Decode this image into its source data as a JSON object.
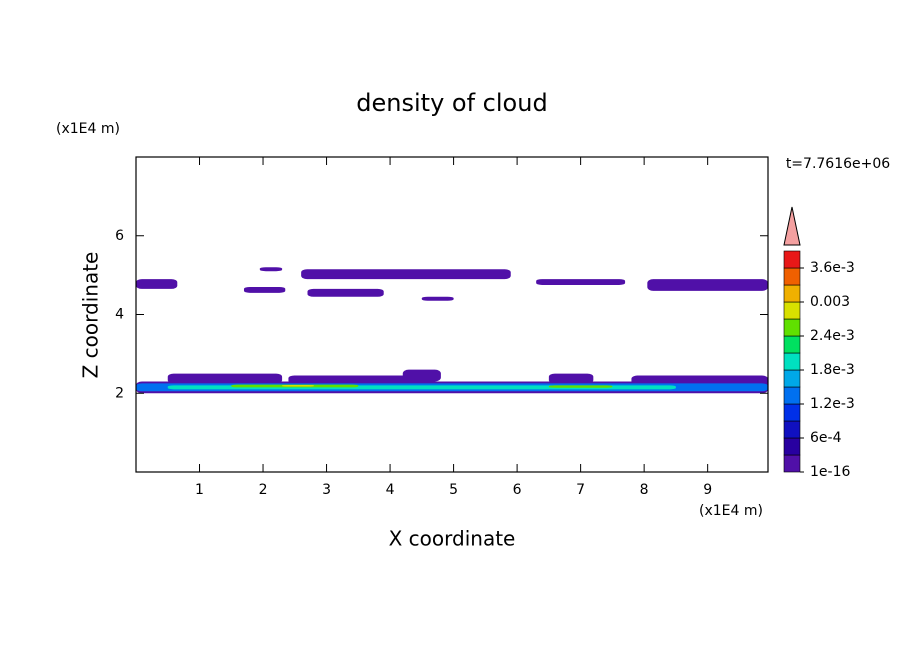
{
  "chart_data": {
    "type": "contour",
    "title": "density of cloud",
    "x_label": "X coordinate",
    "y_label": "Z coordinate",
    "x_unit": "(x1E4 m)",
    "y_unit": "(x1E4 m)",
    "time_label": "t=7.7616e+06",
    "xlim": [
      0,
      9.95
    ],
    "ylim": [
      0,
      8
    ],
    "xticks": [
      1,
      2,
      3,
      4,
      5,
      6,
      7,
      8,
      9
    ],
    "yticks": [
      2,
      4,
      6
    ],
    "colorbar": {
      "levels": [
        1e-16,
        0.0003,
        0.0006,
        0.0009,
        0.0012,
        0.0015,
        0.0018,
        0.0021,
        0.0024,
        0.0027,
        0.003,
        0.0033,
        0.0036,
        0.0039
      ],
      "colors": [
        "#5010a8",
        "#2800a0",
        "#1010c0",
        "#0030e8",
        "#0070f0",
        "#00a8e8",
        "#00e0c0",
        "#00e060",
        "#60e000",
        "#d8e000",
        "#f0b000",
        "#f06000",
        "#e81818"
      ],
      "ticks": [
        1e-16,
        {
          "value": 0.0006,
          "label": "6e-4"
        },
        {
          "value": 0.0012,
          "label": "1.2e-3"
        },
        {
          "value": 0.0018,
          "label": "1.8e-3"
        },
        {
          "value": 0.0024,
          "label": "2.4e-3"
        },
        0.003,
        {
          "value": 0.0036,
          "label": "3.6e-3"
        }
      ]
    },
    "regions": [
      {
        "x": [
          0.0,
          0.65
        ],
        "z": [
          4.65,
          4.9
        ],
        "value": 0.0001
      },
      {
        "x": [
          1.95,
          2.3
        ],
        "z": [
          5.1,
          5.2
        ],
        "value": 0.0001
      },
      {
        "x": [
          1.7,
          2.35
        ],
        "z": [
          4.55,
          4.7
        ],
        "value": 0.0001
      },
      {
        "x": [
          2.6,
          5.9
        ],
        "z": [
          4.9,
          5.15
        ],
        "value": 0.0001
      },
      {
        "x": [
          2.7,
          3.9
        ],
        "z": [
          4.45,
          4.65
        ],
        "value": 0.0001
      },
      {
        "x": [
          4.5,
          5.0
        ],
        "z": [
          4.35,
          4.45
        ],
        "value": 0.0001
      },
      {
        "x": [
          6.3,
          7.7
        ],
        "z": [
          4.75,
          4.9
        ],
        "value": 0.0001
      },
      {
        "x": [
          8.05,
          9.95
        ],
        "z": [
          4.6,
          4.9
        ],
        "value": 0.0001
      },
      {
        "x": [
          0.5,
          2.3
        ],
        "z": [
          2.25,
          2.5
        ],
        "value": 0.0001
      },
      {
        "x": [
          2.4,
          4.5
        ],
        "z": [
          2.25,
          2.45
        ],
        "value": 0.0001
      },
      {
        "x": [
          4.2,
          4.8
        ],
        "z": [
          2.3,
          2.6
        ],
        "value": 0.0001
      },
      {
        "x": [
          6.5,
          7.2
        ],
        "z": [
          2.25,
          2.5
        ],
        "value": 0.0001
      },
      {
        "x": [
          7.8,
          9.95
        ],
        "z": [
          2.2,
          2.45
        ],
        "value": 0.0001
      },
      {
        "x": [
          0.0,
          9.95
        ],
        "z": [
          2.0,
          2.3
        ],
        "value": 0.0001
      },
      {
        "x": [
          0.0,
          9.95
        ],
        "z": [
          2.05,
          2.25
        ],
        "value": 0.0013
      },
      {
        "x": [
          0.5,
          8.5
        ],
        "z": [
          2.1,
          2.2
        ],
        "value": 0.0019
      },
      {
        "x": [
          1.5,
          3.5
        ],
        "z": [
          2.15,
          2.22
        ],
        "value": 0.0025
      },
      {
        "x": [
          6.5,
          7.5
        ],
        "z": [
          2.14,
          2.2
        ],
        "value": 0.0025
      },
      {
        "x": [
          2.3,
          2.8
        ],
        "z": [
          2.17,
          2.21
        ],
        "value": 0.0028
      }
    ]
  }
}
